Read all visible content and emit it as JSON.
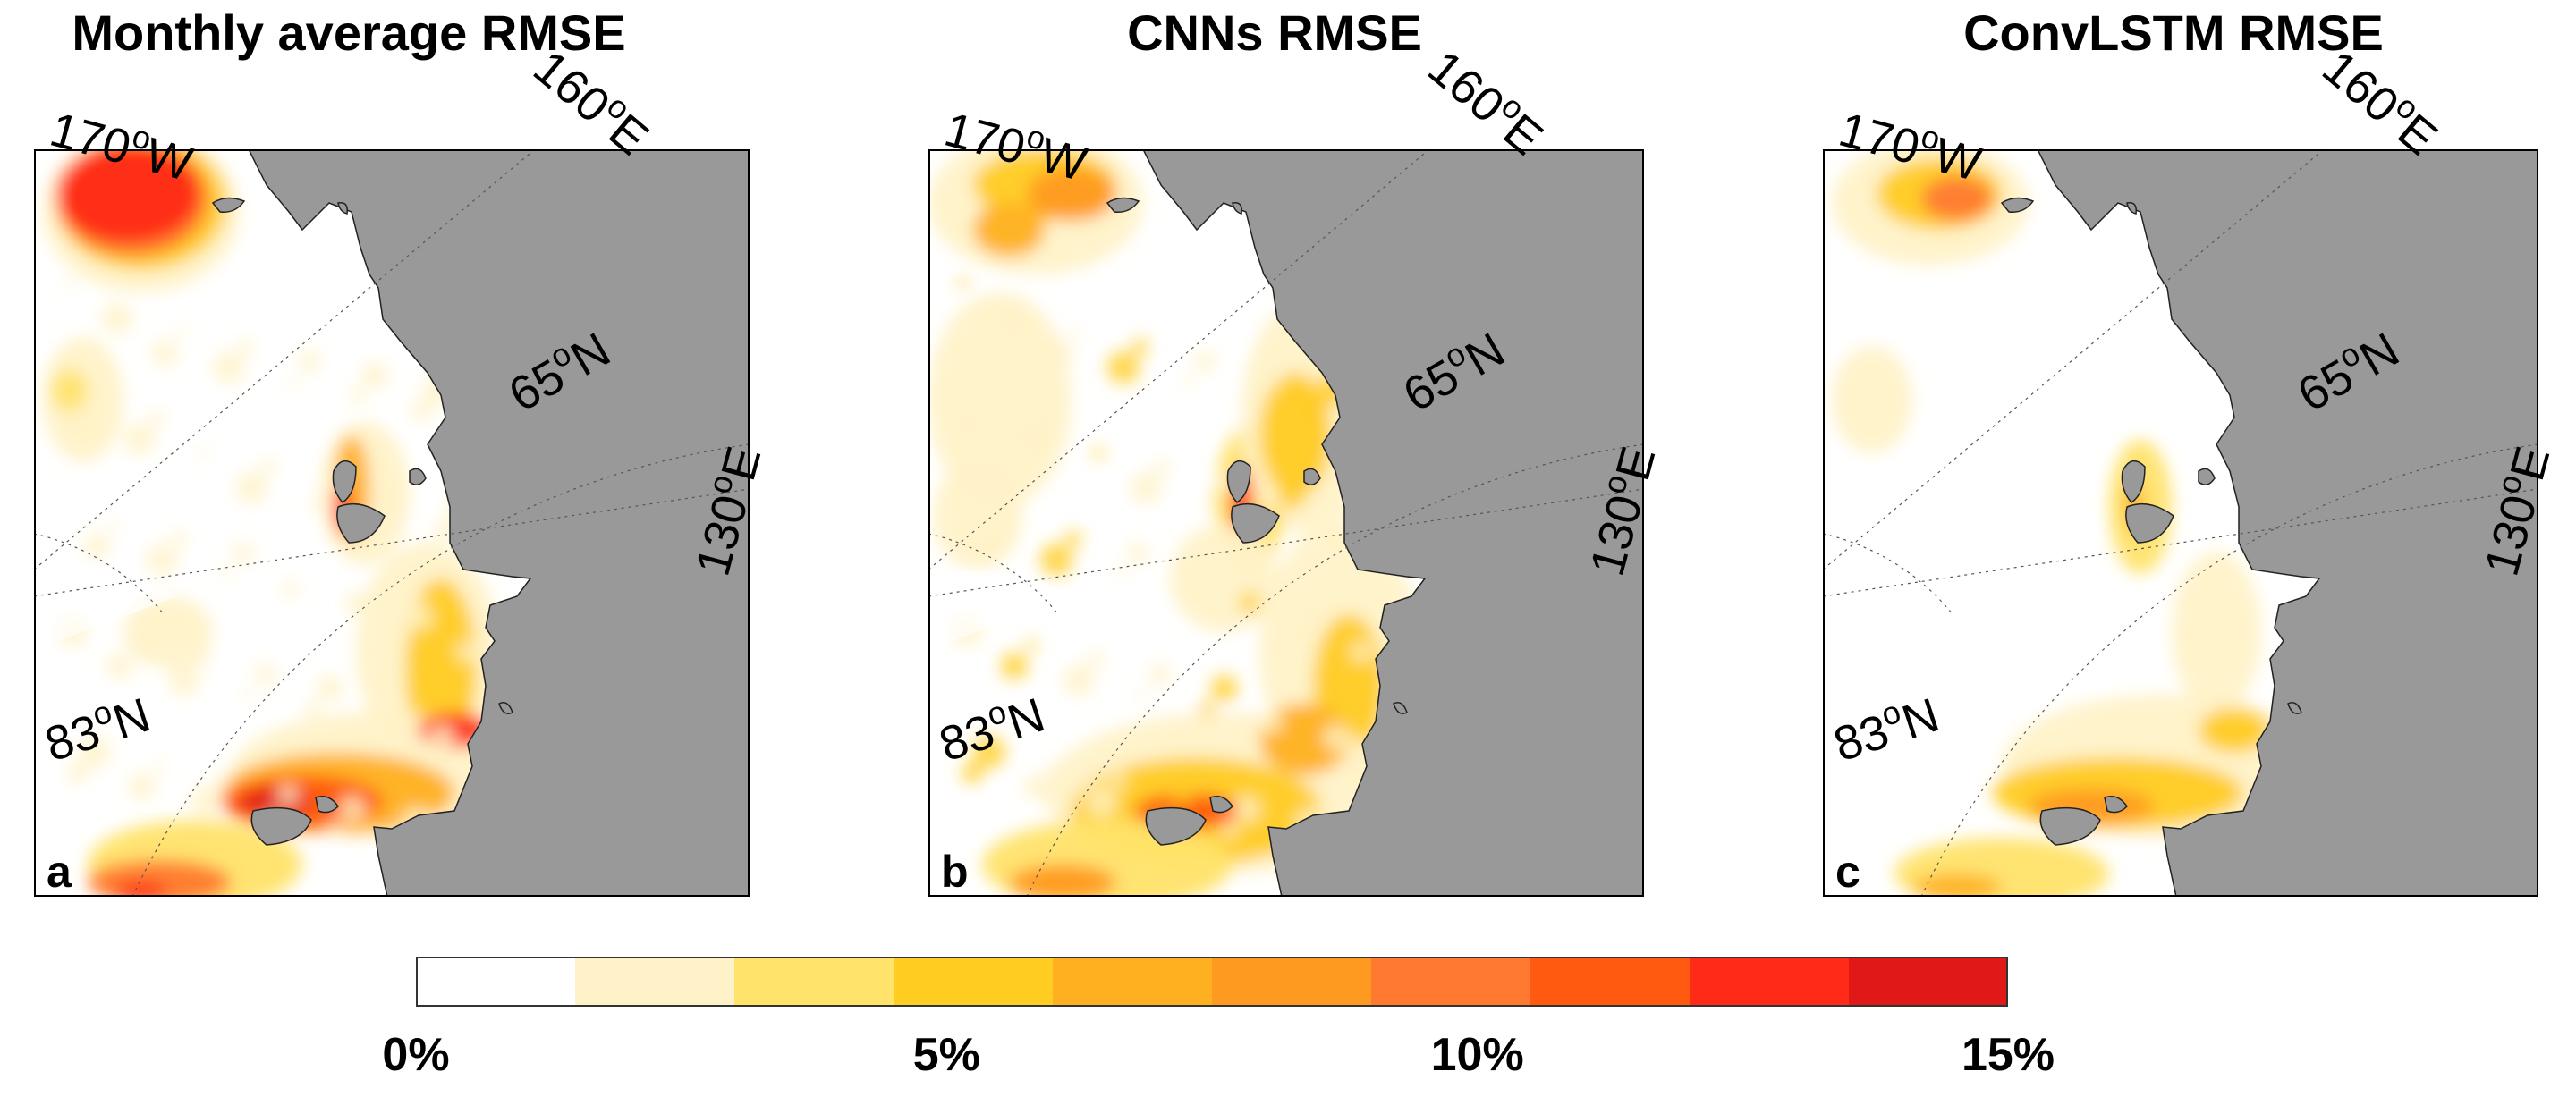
{
  "panels": [
    {
      "title": "Monthly average RMSE",
      "letter": "a",
      "labels": {
        "lon_w": "170",
        "lon_w_suffix": "W",
        "lon_e1": "160",
        "lon_e1_suffix": "E",
        "lat1": "65",
        "lat1_suffix": "N",
        "lon_e2": "130",
        "lon_e2_suffix": "E",
        "lat2": "83",
        "lat2_suffix": "N"
      },
      "error_level": "high"
    },
    {
      "title": "CNNs RMSE",
      "letter": "b",
      "labels": {
        "lon_w": "170",
        "lon_w_suffix": "W",
        "lon_e1": "160",
        "lon_e1_suffix": "E",
        "lat1": "65",
        "lat1_suffix": "N",
        "lon_e2": "130",
        "lon_e2_suffix": "E",
        "lat2": "83",
        "lat2_suffix": "N"
      },
      "error_level": "medium"
    },
    {
      "title": "ConvLSTM RMSE",
      "letter": "c",
      "labels": {
        "lon_w": "170",
        "lon_w_suffix": "W",
        "lon_e1": "160",
        "lon_e1_suffix": "E",
        "lat1": "65",
        "lat1_suffix": "N",
        "lon_e2": "130",
        "lon_e2_suffix": "E",
        "lat2": "83",
        "lat2_suffix": "N"
      },
      "error_level": "low"
    }
  ],
  "colorbar": {
    "colors": [
      "#ffffff",
      "#fff2c8",
      "#ffe36a",
      "#ffcc22",
      "#ffb020",
      "#ff9a20",
      "#ff7a30",
      "#ff5a10",
      "#ff2a18",
      "#e01818"
    ],
    "ticks": [
      "0%",
      "5%",
      "10%",
      "15%"
    ],
    "tick_values": [
      0,
      5,
      10,
      15
    ],
    "min": 0,
    "max": 15
  },
  "colors": {
    "land": "#999999",
    "border": "#000000"
  }
}
